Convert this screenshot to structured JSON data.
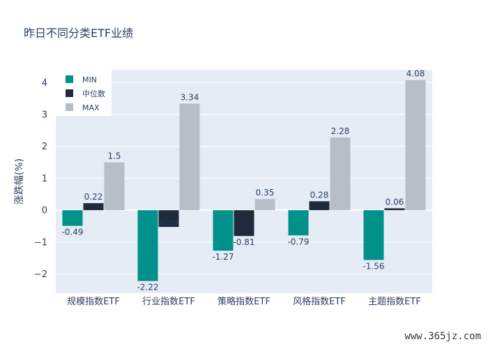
{
  "chart_data": {
    "type": "bar",
    "title": "昨日不同分类ETF业绩",
    "ylabel": "涨跌幅(%)",
    "xlabel": "",
    "categories": [
      "规模指数ETF",
      "行业指数ETF",
      "策略指数ETF",
      "风格指数ETF",
      "主题指数ETF"
    ],
    "series": [
      {
        "name": "MIN",
        "color": "#00918a",
        "values": [
          -0.49,
          -2.22,
          -1.27,
          -0.79,
          -1.56
        ],
        "labels": [
          "-0.49",
          "-2.22",
          "-1.27",
          "-0.79",
          "-1.56"
        ]
      },
      {
        "name": "中位数",
        "color": "#1f2a3c",
        "values": [
          0.22,
          -0.525,
          -0.81,
          0.28,
          0.06
        ],
        "labels": [
          "0.22",
          "-0.525",
          "-0.81",
          "0.28",
          "0.06"
        ]
      },
      {
        "name": "MAX",
        "color": "#b6bec7",
        "values": [
          1.5,
          3.34,
          0.35,
          2.28,
          4.08
        ],
        "labels": [
          "1.5",
          "3.34",
          "0.35",
          "2.28",
          "4.08"
        ]
      }
    ],
    "ylim": [
      -2.6,
      4.4
    ],
    "yticks": [
      -2,
      -1,
      0,
      1,
      2,
      3,
      4
    ],
    "ytick_labels": [
      "−2",
      "−1",
      "0",
      "1",
      "2",
      "3",
      "4"
    ],
    "grid": true,
    "legend_position": "top-left",
    "plot_background": "#e5ecf6"
  },
  "watermark": "www.365jz.com"
}
